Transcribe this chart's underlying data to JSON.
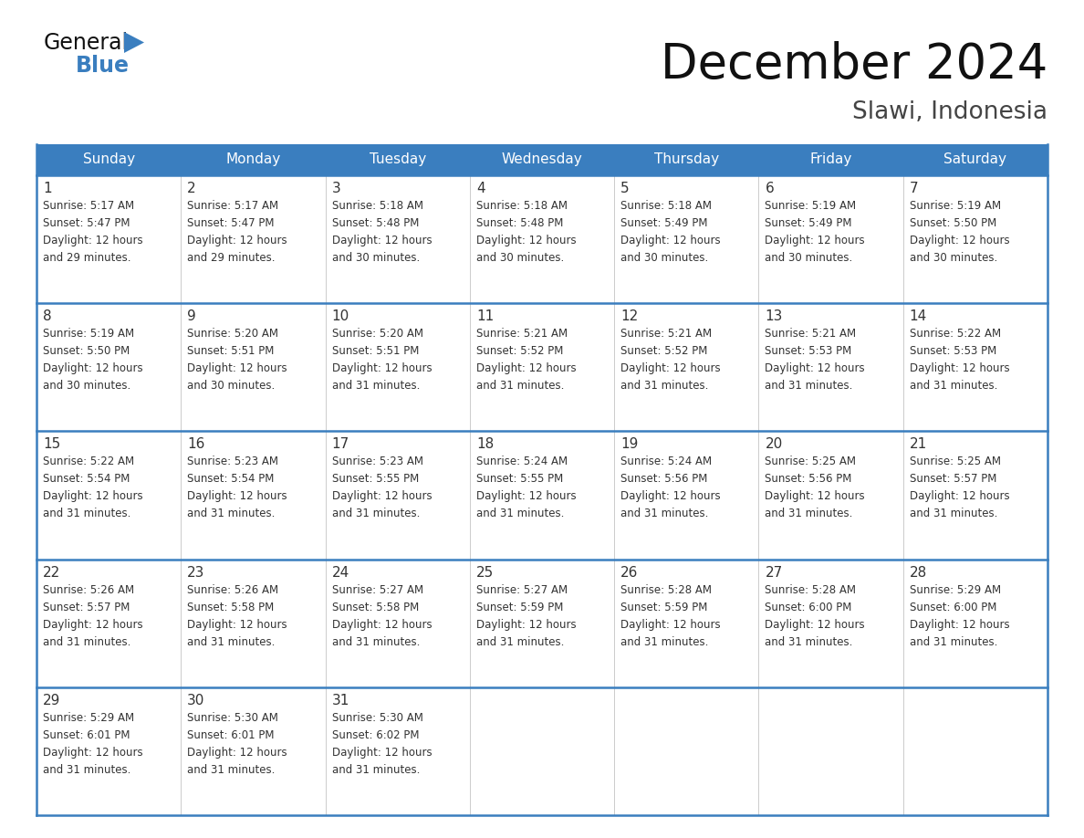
{
  "title": "December 2024",
  "subtitle": "Slawi, Indonesia",
  "header_color": "#3a7ebf",
  "header_text_color": "#ffffff",
  "bg_color": "#ffffff",
  "text_color": "#333333",
  "days_of_week": [
    "Sunday",
    "Monday",
    "Tuesday",
    "Wednesday",
    "Thursday",
    "Friday",
    "Saturday"
  ],
  "grid_line_color": "#3a7ebf",
  "calendar_data": [
    [
      {
        "day": 1,
        "sunrise": "5:17 AM",
        "sunset": "5:47 PM",
        "daylight": "12 hours and 29 minutes."
      },
      {
        "day": 2,
        "sunrise": "5:17 AM",
        "sunset": "5:47 PM",
        "daylight": "12 hours and 29 minutes."
      },
      {
        "day": 3,
        "sunrise": "5:18 AM",
        "sunset": "5:48 PM",
        "daylight": "12 hours and 30 minutes."
      },
      {
        "day": 4,
        "sunrise": "5:18 AM",
        "sunset": "5:48 PM",
        "daylight": "12 hours and 30 minutes."
      },
      {
        "day": 5,
        "sunrise": "5:18 AM",
        "sunset": "5:49 PM",
        "daylight": "12 hours and 30 minutes."
      },
      {
        "day": 6,
        "sunrise": "5:19 AM",
        "sunset": "5:49 PM",
        "daylight": "12 hours and 30 minutes."
      },
      {
        "day": 7,
        "sunrise": "5:19 AM",
        "sunset": "5:50 PM",
        "daylight": "12 hours and 30 minutes."
      }
    ],
    [
      {
        "day": 8,
        "sunrise": "5:19 AM",
        "sunset": "5:50 PM",
        "daylight": "12 hours and 30 minutes."
      },
      {
        "day": 9,
        "sunrise": "5:20 AM",
        "sunset": "5:51 PM",
        "daylight": "12 hours and 30 minutes."
      },
      {
        "day": 10,
        "sunrise": "5:20 AM",
        "sunset": "5:51 PM",
        "daylight": "12 hours and 31 minutes."
      },
      {
        "day": 11,
        "sunrise": "5:21 AM",
        "sunset": "5:52 PM",
        "daylight": "12 hours and 31 minutes."
      },
      {
        "day": 12,
        "sunrise": "5:21 AM",
        "sunset": "5:52 PM",
        "daylight": "12 hours and 31 minutes."
      },
      {
        "day": 13,
        "sunrise": "5:21 AM",
        "sunset": "5:53 PM",
        "daylight": "12 hours and 31 minutes."
      },
      {
        "day": 14,
        "sunrise": "5:22 AM",
        "sunset": "5:53 PM",
        "daylight": "12 hours and 31 minutes."
      }
    ],
    [
      {
        "day": 15,
        "sunrise": "5:22 AM",
        "sunset": "5:54 PM",
        "daylight": "12 hours and 31 minutes."
      },
      {
        "day": 16,
        "sunrise": "5:23 AM",
        "sunset": "5:54 PM",
        "daylight": "12 hours and 31 minutes."
      },
      {
        "day": 17,
        "sunrise": "5:23 AM",
        "sunset": "5:55 PM",
        "daylight": "12 hours and 31 minutes."
      },
      {
        "day": 18,
        "sunrise": "5:24 AM",
        "sunset": "5:55 PM",
        "daylight": "12 hours and 31 minutes."
      },
      {
        "day": 19,
        "sunrise": "5:24 AM",
        "sunset": "5:56 PM",
        "daylight": "12 hours and 31 minutes."
      },
      {
        "day": 20,
        "sunrise": "5:25 AM",
        "sunset": "5:56 PM",
        "daylight": "12 hours and 31 minutes."
      },
      {
        "day": 21,
        "sunrise": "5:25 AM",
        "sunset": "5:57 PM",
        "daylight": "12 hours and 31 minutes."
      }
    ],
    [
      {
        "day": 22,
        "sunrise": "5:26 AM",
        "sunset": "5:57 PM",
        "daylight": "12 hours and 31 minutes."
      },
      {
        "day": 23,
        "sunrise": "5:26 AM",
        "sunset": "5:58 PM",
        "daylight": "12 hours and 31 minutes."
      },
      {
        "day": 24,
        "sunrise": "5:27 AM",
        "sunset": "5:58 PM",
        "daylight": "12 hours and 31 minutes."
      },
      {
        "day": 25,
        "sunrise": "5:27 AM",
        "sunset": "5:59 PM",
        "daylight": "12 hours and 31 minutes."
      },
      {
        "day": 26,
        "sunrise": "5:28 AM",
        "sunset": "5:59 PM",
        "daylight": "12 hours and 31 minutes."
      },
      {
        "day": 27,
        "sunrise": "5:28 AM",
        "sunset": "6:00 PM",
        "daylight": "12 hours and 31 minutes."
      },
      {
        "day": 28,
        "sunrise": "5:29 AM",
        "sunset": "6:00 PM",
        "daylight": "12 hours and 31 minutes."
      }
    ],
    [
      {
        "day": 29,
        "sunrise": "5:29 AM",
        "sunset": "6:01 PM",
        "daylight": "12 hours and 31 minutes."
      },
      {
        "day": 30,
        "sunrise": "5:30 AM",
        "sunset": "6:01 PM",
        "daylight": "12 hours and 31 minutes."
      },
      {
        "day": 31,
        "sunrise": "5:30 AM",
        "sunset": "6:02 PM",
        "daylight": "12 hours and 31 minutes."
      },
      null,
      null,
      null,
      null
    ]
  ]
}
